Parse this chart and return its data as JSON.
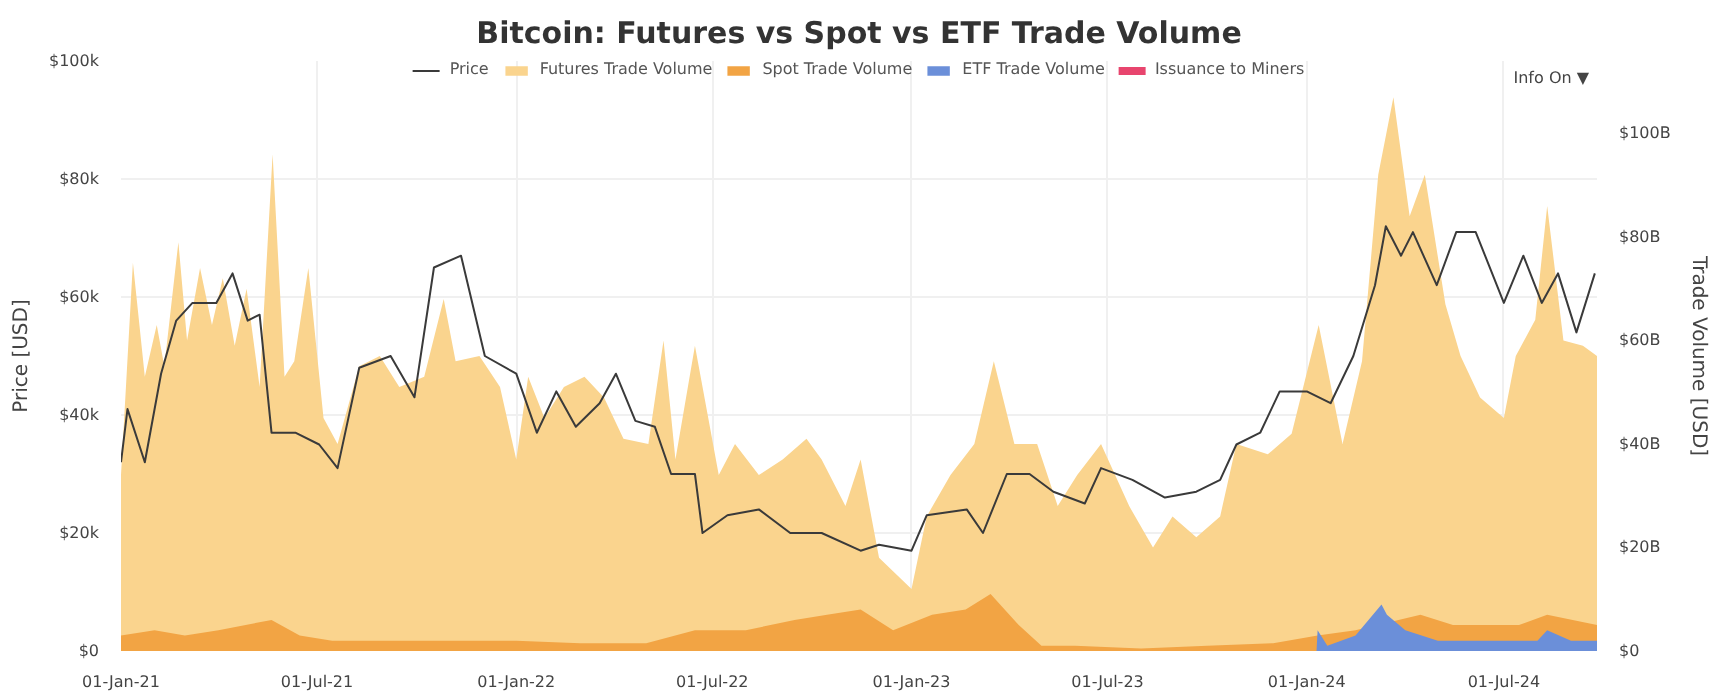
{
  "chart_data": {
    "type": "area",
    "title": "Bitcoin: Futures vs Spot vs ETF Trade Volume",
    "ylabel": "Price [USD]",
    "y2label": "Trade Volume [USD]",
    "xlim": [
      "2021-01-01",
      "2024-09-25"
    ],
    "xticks": [
      {
        "value": "2021-01-01",
        "label": "01-Jan-21"
      },
      {
        "value": "2021-07-01",
        "label": "01-Jul-21"
      },
      {
        "value": "2022-01-01",
        "label": "01-Jan-22"
      },
      {
        "value": "2022-07-01",
        "label": "01-Jul-22"
      },
      {
        "value": "2023-01-01",
        "label": "01-Jan-23"
      },
      {
        "value": "2023-07-01",
        "label": "01-Jul-23"
      },
      {
        "value": "2024-01-01",
        "label": "01-Jan-24"
      },
      {
        "value": "2024-07-01",
        "label": "01-Jul-24"
      }
    ],
    "ylim": [
      0,
      100
    ],
    "yticks": [
      {
        "value": 0,
        "label": "$0"
      },
      {
        "value": 20,
        "label": "$20k"
      },
      {
        "value": 40,
        "label": "$40k"
      },
      {
        "value": 60,
        "label": "$60k"
      },
      {
        "value": 80,
        "label": "$80k"
      },
      {
        "value": 100,
        "label": "$100k"
      }
    ],
    "y2lim": [
      0,
      114
    ],
    "y2ticks": [
      {
        "value": 0,
        "label": "$0"
      },
      {
        "value": 20,
        "label": "$20B"
      },
      {
        "value": 40,
        "label": "$40B"
      },
      {
        "value": 60,
        "label": "$60B"
      },
      {
        "value": 80,
        "label": "$80B"
      },
      {
        "value": 100,
        "label": "$100B"
      }
    ],
    "grid": true,
    "legend": "top",
    "annotations": [
      "Info On ▼"
    ],
    "series": [
      {
        "name": "Futures Trade Volume",
        "axis": "y2",
        "color": "#fad48e",
        "x": [
          "2021-01-01",
          "2021-01-12",
          "2021-01-23",
          "2021-02-03",
          "2021-02-10",
          "2021-02-23",
          "2021-03-03",
          "2021-03-15",
          "2021-03-26",
          "2021-04-05",
          "2021-04-16",
          "2021-04-27",
          "2021-05-09",
          "2021-05-21",
          "2021-06-01",
          "2021-06-10",
          "2021-06-23",
          "2021-07-07",
          "2021-07-20",
          "2021-08-09",
          "2021-08-28",
          "2021-09-15",
          "2021-10-08",
          "2021-10-26",
          "2021-11-06",
          "2021-11-28",
          "2021-12-17",
          "2022-01-01",
          "2022-01-12",
          "2022-01-27",
          "2022-02-14",
          "2022-03-05",
          "2022-03-23",
          "2022-04-10",
          "2022-05-03",
          "2022-05-17",
          "2022-05-28",
          "2022-06-15",
          "2022-07-07",
          "2022-07-22",
          "2022-08-13",
          "2022-09-04",
          "2022-09-26",
          "2022-10-10",
          "2022-11-01",
          "2022-11-15",
          "2022-12-02",
          "2023-01-01",
          "2023-01-15",
          "2023-02-06",
          "2023-02-28",
          "2023-03-18",
          "2023-04-06",
          "2023-04-27",
          "2023-05-16",
          "2023-06-03",
          "2023-06-25",
          "2023-07-21",
          "2023-08-12",
          "2023-08-30",
          "2023-09-21",
          "2023-10-13",
          "2023-10-28",
          "2023-11-26",
          "2023-12-18",
          "2024-01-12",
          "2024-02-03",
          "2024-02-21",
          "2024-03-07",
          "2024-03-21",
          "2024-04-05",
          "2024-04-19",
          "2024-05-08",
          "2024-05-22",
          "2024-06-09",
          "2024-07-01",
          "2024-07-12",
          "2024-07-30",
          "2024-08-10",
          "2024-08-25",
          "2024-09-12",
          "2024-09-25"
        ],
        "values": [
          34,
          75,
          53,
          63,
          55,
          79,
          60,
          74,
          63,
          72,
          59,
          70,
          51,
          96,
          53,
          56,
          74,
          45,
          40,
          55,
          57,
          51,
          53,
          68,
          56,
          57,
          51,
          37,
          53,
          45,
          51,
          53,
          49,
          41,
          40,
          60,
          37,
          59,
          34,
          40,
          34,
          37,
          41,
          37,
          28,
          37,
          18,
          12,
          26,
          34,
          40,
          56,
          40,
          40,
          28,
          34,
          40,
          28,
          20,
          26,
          22,
          26,
          40,
          38,
          42,
          63,
          40,
          56,
          92,
          107,
          84,
          92,
          67,
          57,
          49,
          45,
          57,
          64,
          86,
          60,
          59,
          57
        ]
      },
      {
        "name": "Spot Trade Volume",
        "axis": "y2",
        "color": "#f2a444",
        "x": [
          "2021-01-01",
          "2021-02-01",
          "2021-03-01",
          "2021-04-01",
          "2021-05-20",
          "2021-06-15",
          "2021-07-15",
          "2021-09-01",
          "2021-11-01",
          "2022-01-01",
          "2022-03-01",
          "2022-05-01",
          "2022-06-15",
          "2022-08-01",
          "2022-09-15",
          "2022-10-15",
          "2022-11-15",
          "2022-12-15",
          "2023-01-20",
          "2023-02-20",
          "2023-03-15",
          "2023-04-10",
          "2023-05-01",
          "2023-06-01",
          "2023-08-01",
          "2023-10-01",
          "2023-12-01",
          "2024-01-11",
          "2024-02-15",
          "2024-04-15",
          "2024-05-15",
          "2024-06-15",
          "2024-07-15",
          "2024-08-10",
          "2024-09-25"
        ],
        "values": [
          3,
          4,
          3,
          4,
          6,
          3,
          2,
          2,
          2,
          2,
          1.5,
          1.5,
          4,
          4,
          6,
          7,
          8,
          4,
          7,
          8,
          11,
          5,
          1,
          1,
          0.5,
          1,
          1.5,
          3,
          4,
          7,
          5,
          5,
          5,
          7,
          5
        ]
      },
      {
        "name": "ETF Trade Volume",
        "axis": "y2",
        "color": "#6b8fd9",
        "x": [
          "2024-01-10",
          "2024-01-11",
          "2024-01-20",
          "2024-02-15",
          "2024-03-10",
          "2024-03-15",
          "2024-04-01",
          "2024-05-01",
          "2024-06-01",
          "2024-07-01",
          "2024-08-01",
          "2024-08-10",
          "2024-09-01",
          "2024-09-25"
        ],
        "values": [
          0,
          4,
          1,
          3,
          9,
          7,
          4,
          2,
          2,
          2,
          2,
          4,
          2,
          2
        ]
      },
      {
        "name": "Issuance to Miners",
        "axis": "y2",
        "color": "#e8456e"
      },
      {
        "name": "Price",
        "type": "line",
        "axis": "y",
        "color": "#3a3a3a",
        "x": [
          "2021-01-01",
          "2021-01-07",
          "2021-01-23",
          "2021-02-07",
          "2021-02-21",
          "2021-03-08",
          "2021-03-30",
          "2021-04-14",
          "2021-04-28",
          "2021-05-09",
          "2021-05-20",
          "2021-06-11",
          "2021-07-03",
          "2021-07-20",
          "2021-08-09",
          "2021-09-07",
          "2021-09-29",
          "2021-10-17",
          "2021-11-11",
          "2021-12-03",
          "2022-01-01",
          "2022-01-20",
          "2022-02-07",
          "2022-02-25",
          "2022-03-19",
          "2022-04-03",
          "2022-04-21",
          "2022-05-09",
          "2022-05-24",
          "2022-06-15",
          "2022-06-22",
          "2022-07-15",
          "2022-08-13",
          "2022-09-11",
          "2022-10-10",
          "2022-11-15",
          "2022-12-02",
          "2023-01-01",
          "2023-01-15",
          "2023-02-21",
          "2023-03-08",
          "2023-03-30",
          "2023-04-20",
          "2023-05-12",
          "2023-06-10",
          "2023-06-25",
          "2023-07-24",
          "2023-08-23",
          "2023-09-21",
          "2023-10-13",
          "2023-10-28",
          "2023-11-19",
          "2023-12-07",
          "2024-01-01",
          "2024-01-23",
          "2024-02-13",
          "2024-03-04",
          "2024-03-14",
          "2024-03-28",
          "2024-04-08",
          "2024-04-30",
          "2024-05-18",
          "2024-06-05",
          "2024-07-01",
          "2024-07-19",
          "2024-08-05",
          "2024-08-20",
          "2024-09-06",
          "2024-09-23"
        ],
        "values": [
          32,
          41,
          32,
          47,
          56,
          59,
          59,
          64,
          56,
          57,
          37,
          37,
          35,
          31,
          48,
          50,
          43,
          65,
          67,
          50,
          47,
          37,
          44,
          38,
          42,
          47,
          39,
          38,
          30,
          30,
          20,
          23,
          24,
          20,
          20,
          17,
          18,
          17,
          23,
          24,
          20,
          30,
          30,
          27,
          25,
          31,
          29,
          26,
          27,
          29,
          35,
          37,
          44,
          44,
          42,
          50,
          62,
          72,
          67,
          71,
          62,
          71,
          71,
          59,
          67,
          59,
          64,
          54,
          64
        ]
      }
    ]
  }
}
